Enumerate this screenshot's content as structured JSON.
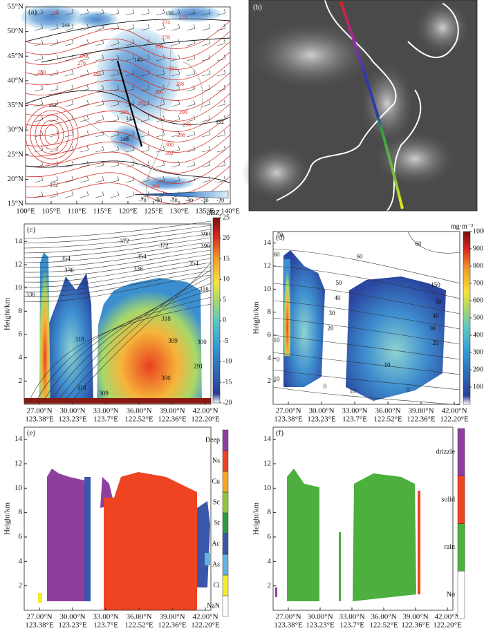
{
  "map": {
    "label": "(a)",
    "xlim": [
      100,
      140
    ],
    "ylim": [
      15,
      55
    ],
    "xticks": [
      {
        "value": 100,
        "label": "100°E"
      },
      {
        "value": 105,
        "label": "105°E"
      },
      {
        "value": 110,
        "label": "110°E"
      },
      {
        "value": 115,
        "label": "115°E"
      },
      {
        "value": 120,
        "label": "120°E"
      },
      {
        "value": 125,
        "label": "125°E"
      },
      {
        "value": 130,
        "label": "130°E"
      },
      {
        "value": 135,
        "label": "135°E"
      },
      {
        "value": 140,
        "label": "140°E"
      }
    ],
    "yticks": [
      {
        "value": 15,
        "label": "15°N"
      },
      {
        "value": 20,
        "label": "20°N"
      },
      {
        "value": 25,
        "label": "25°N"
      },
      {
        "value": 30,
        "label": "30°N"
      },
      {
        "value": 35,
        "label": "35°N"
      },
      {
        "value": 40,
        "label": "40°N"
      },
      {
        "value": 45,
        "label": "45°N"
      },
      {
        "value": 50,
        "label": "50°N"
      },
      {
        "value": 55,
        "label": "55°N"
      }
    ],
    "colorbar_lim": [
      -75,
      -15
    ],
    "colorbar_ticks": [
      -70,
      -60,
      -50,
      -40,
      -30,
      -20
    ],
    "contour_labels_black": [
      "136",
      "144",
      "140",
      "144",
      "148",
      "152",
      "152",
      "152"
    ],
    "contour_labels_red": [
      "272",
      "276",
      "274",
      "278",
      "276",
      "280",
      "278",
      "280",
      "282",
      "284",
      "286",
      "288",
      "290",
      "292",
      "294",
      "296",
      "298",
      "300",
      "302",
      "304"
    ]
  },
  "satellite": {
    "label": "(b)"
  },
  "reflectivity": {
    "label": "(c)",
    "unit": "dBZ",
    "unit_subscript": "e",
    "ylabel": "Height/km",
    "ylim": [
      0,
      15.5
    ],
    "yticks": [
      2,
      4,
      6,
      8,
      10,
      12,
      14
    ],
    "lat_labels": [
      "27.00°N",
      "30.00°N",
      "33.00°N",
      "36.00°N",
      "39.00°N",
      "42.00°N"
    ],
    "lon_labels": [
      "123.38°E",
      "123.23°E",
      "123.7°E",
      "122.52°E",
      "122.36°E",
      "122.20°E"
    ],
    "colorbar_lim": [
      -20,
      25
    ],
    "colorbar_ticks": [
      -20,
      -15,
      -10,
      -5,
      0,
      5,
      10,
      15,
      20,
      25
    ],
    "contour_labels": [
      "390",
      "372",
      "372",
      "390",
      "354",
      "354",
      "354",
      "336",
      "336",
      "336",
      "318",
      "318",
      "318",
      "309",
      "309",
      "300",
      "300",
      "291",
      "318"
    ]
  },
  "water_content": {
    "label": "(d)",
    "unit": "mg·m⁻³",
    "ylabel": "Height/km",
    "ylim": [
      0,
      15
    ],
    "yticks": [
      2,
      4,
      6,
      8,
      10,
      12,
      14
    ],
    "lat_labels": [
      "27.00°N",
      "30.00°N",
      "33.00°N",
      "36.00°N",
      "39.00°N",
      "42.00°N"
    ],
    "lon_labels": [
      "123.38°E",
      "123.23°E",
      "123.7°E",
      "122.52°E",
      "122.36°E",
      "122.20°E"
    ],
    "colorbar_lim": [
      0,
      1000
    ],
    "colorbar_ticks": [
      100,
      200,
      300,
      400,
      500,
      600,
      700,
      800,
      900,
      1000
    ],
    "contour_labels": [
      "70",
      "60",
      "60",
      "60",
      "50",
      "50",
      "40",
      "40",
      "30",
      "30",
      "20",
      "20",
      "10",
      "10",
      "0",
      "0",
      "10",
      "10",
      "0",
      "150"
    ]
  },
  "cloud_type": {
    "label": "(e)",
    "ylabel": "Height/km",
    "ylim": [
      0,
      15
    ],
    "yticks": [
      2,
      4,
      6,
      8,
      10,
      12,
      14
    ],
    "lat_labels": [
      "27.00°N",
      "30.00°N",
      "33.00°N",
      "36.00°N",
      "39.00°N",
      "42.00°N"
    ],
    "lon_labels": [
      "123.38°E",
      "123.23°E",
      "123.7°E",
      "122.52°E",
      "122.36°E",
      "122.20°E"
    ],
    "classes": [
      "NaN",
      "Ci",
      "As",
      "Ac",
      "St",
      "Sc",
      "Cu",
      "Ns",
      "Deep"
    ],
    "colors": [
      "#ffffff",
      "#f4ec2a",
      "#5fb3e6",
      "#3a56a8",
      "#2e9a45",
      "#8cc63f",
      "#f5a623",
      "#ee4422",
      "#8e3f9e"
    ]
  },
  "precipitation": {
    "label": "(f)",
    "ylabel": "Height/km",
    "ylim": [
      0,
      15
    ],
    "yticks": [
      2,
      4,
      6,
      8,
      10,
      12,
      14
    ],
    "lat_labels": [
      "27.00°N",
      "30.00°N",
      "33.00°N",
      "36.00°N",
      "39.00°N",
      "42.00°N"
    ],
    "lon_labels": [
      "123.38°E",
      "123.23°E",
      "123.7°E",
      "122.52°E",
      "122.36°E",
      "122.20°E"
    ],
    "classes": [
      "No",
      "rain",
      "solid",
      "drizzle"
    ],
    "colors": [
      "#ffffff",
      "#4caf3e",
      "#ee4422",
      "#8e3f9e"
    ]
  }
}
